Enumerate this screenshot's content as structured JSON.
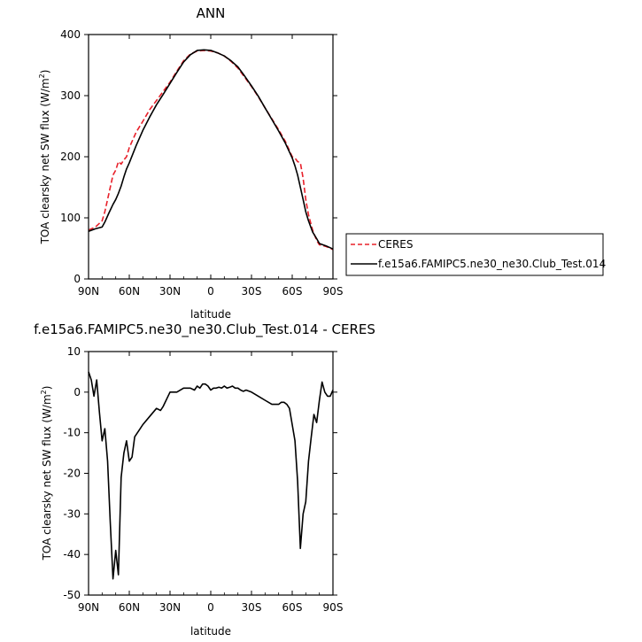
{
  "chart_data": [
    {
      "type": "line",
      "title": "ANN",
      "xlabel": "latitude",
      "ylabel_main": "TOA clearsky net SW flux (W/m",
      "ylabel_sup": "2",
      "ylabel_end": ")",
      "xlim": [
        90,
        -90
      ],
      "ylim": [
        0,
        400
      ],
      "xticks": [
        90,
        60,
        30,
        0,
        -30,
        -60,
        -90
      ],
      "xtick_labels": [
        "90N",
        "60N",
        "30N",
        "0",
        "30S",
        "60S",
        "90S"
      ],
      "yticks": [
        0,
        100,
        200,
        300,
        400
      ],
      "ytick_labels": [
        "0",
        "100",
        "200",
        "300",
        "400"
      ],
      "legend_placement": "right",
      "series": [
        {
          "name": "CERES",
          "color": "#e8202a",
          "dash": "dashed",
          "x": [
            90,
            85,
            80,
            78,
            75,
            72,
            70,
            68,
            66,
            64,
            62,
            60,
            55,
            50,
            45,
            40,
            35,
            30,
            25,
            20,
            15,
            10,
            5,
            0,
            -5,
            -10,
            -15,
            -20,
            -25,
            -30,
            -35,
            -40,
            -45,
            -50,
            -55,
            -60,
            -62,
            -64,
            -66,
            -68,
            -70,
            -72,
            -75,
            -78,
            -80,
            -85,
            -90
          ],
          "y": [
            80,
            85,
            95,
            110,
            140,
            170,
            178,
            192,
            188,
            195,
            200,
            215,
            240,
            258,
            277,
            292,
            307,
            322,
            340,
            357,
            368,
            373,
            374,
            373,
            370,
            365,
            356,
            345,
            330,
            315,
            298,
            280,
            262,
            244,
            225,
            200,
            198,
            192,
            190,
            165,
            130,
            105,
            80,
            63,
            56,
            53,
            48
          ]
        },
        {
          "name": "f.e15a6.FAMIPC5.ne30_ne30.Club_Test.014",
          "color": "#000000",
          "dash": "solid",
          "x": [
            90,
            85,
            80,
            78,
            75,
            72,
            70,
            68,
            66,
            64,
            62,
            60,
            55,
            50,
            45,
            40,
            35,
            30,
            25,
            20,
            15,
            10,
            5,
            0,
            -5,
            -10,
            -15,
            -20,
            -25,
            -30,
            -35,
            -40,
            -45,
            -50,
            -55,
            -60,
            -62,
            -64,
            -66,
            -68,
            -70,
            -72,
            -75,
            -78,
            -80,
            -85,
            -90
          ],
          "y": [
            78,
            82,
            85,
            93,
            108,
            122,
            130,
            140,
            152,
            167,
            180,
            190,
            218,
            243,
            265,
            285,
            302,
            320,
            338,
            355,
            367,
            374,
            375,
            374,
            370,
            365,
            357,
            347,
            332,
            316,
            299,
            280,
            261,
            242,
            222,
            198,
            185,
            170,
            150,
            130,
            110,
            95,
            77,
            66,
            58,
            54,
            49
          ]
        }
      ]
    },
    {
      "type": "line",
      "title": "f.e15a6.FAMIPC5.ne30_ne30.Club_Test.014 - CERES",
      "xlabel": "latitude",
      "ylabel_main": "TOA clearsky net SW flux (W/m",
      "ylabel_sup": "2",
      "ylabel_end": ")",
      "xlim": [
        90,
        -90
      ],
      "ylim": [
        -50,
        10
      ],
      "xticks": [
        90,
        60,
        30,
        0,
        -30,
        -60,
        -90
      ],
      "xtick_labels": [
        "90N",
        "60N",
        "30N",
        "0",
        "30S",
        "60S",
        "90S"
      ],
      "yticks": [
        -50,
        -40,
        -30,
        -20,
        -10,
        0,
        10
      ],
      "ytick_labels": [
        "-50",
        "-40",
        "-30",
        "-20",
        "-10",
        "0",
        "10"
      ],
      "series": [
        {
          "name": "",
          "color": "#000000",
          "dash": "solid",
          "x": [
            90,
            88,
            86,
            84,
            82,
            80,
            78,
            76,
            74,
            72,
            70,
            68,
            66,
            64,
            62,
            60,
            58,
            56,
            54,
            52,
            50,
            45,
            40,
            37,
            35,
            30,
            25,
            20,
            15,
            12,
            10,
            8,
            6,
            4,
            2,
            0,
            -2,
            -4,
            -6,
            -8,
            -10,
            -12,
            -14,
            -16,
            -18,
            -20,
            -22,
            -24,
            -26,
            -30,
            -35,
            -40,
            -45,
            -50,
            -52,
            -54,
            -56,
            -58,
            -60,
            -62,
            -64,
            -66,
            -68,
            -70,
            -72,
            -74,
            -76,
            -78,
            -80,
            -82,
            -84,
            -86,
            -88,
            -90
          ],
          "y": [
            5,
            3,
            -1,
            3,
            -5,
            -12,
            -9,
            -17,
            -32,
            -46,
            -39,
            -45,
            -21,
            -15,
            -12,
            -17,
            -16,
            -11,
            -10,
            -9,
            -8,
            -6,
            -4,
            -4.5,
            -3.5,
            0,
            0,
            1,
            1,
            0.5,
            1.5,
            1,
            2,
            2,
            1.5,
            0.5,
            1,
            1,
            1.2,
            1,
            1.5,
            1,
            1.2,
            1.5,
            1,
            1,
            0.5,
            0.2,
            0.5,
            0,
            -1,
            -2,
            -3,
            -3,
            -2.5,
            -2.5,
            -3,
            -4,
            -8,
            -12,
            -22,
            -38.5,
            -30,
            -27,
            -17,
            -11,
            -5.5,
            -7.5,
            -2,
            2.5,
            0,
            -1,
            -1,
            0.5
          ]
        }
      ]
    }
  ]
}
